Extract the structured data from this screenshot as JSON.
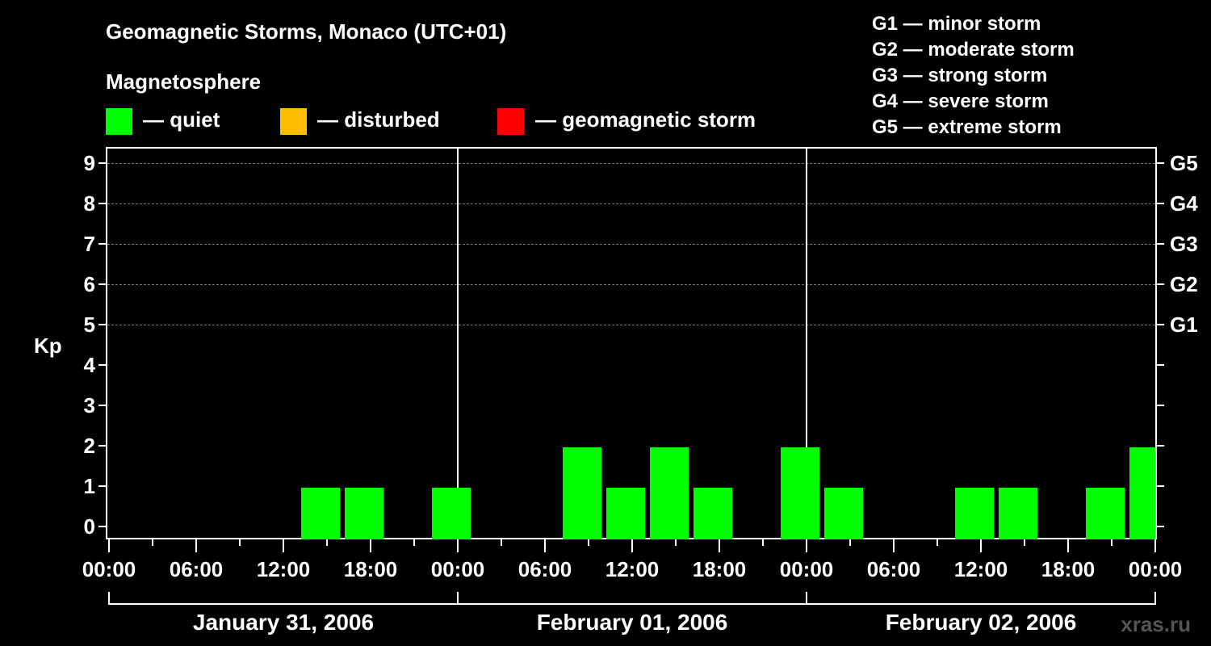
{
  "title": "Geomagnetic Storms, Monaco (UTC+01)",
  "subtitle": "Magnetosphere",
  "legend": [
    {
      "label": "— quiet",
      "color": "#00ff00"
    },
    {
      "label": "— disturbed",
      "color": "#ffbf00"
    },
    {
      "label": "— geomagnetic storm",
      "color": "#ff0000"
    }
  ],
  "g_scale": [
    "G1 — minor storm",
    "G2 — moderate storm",
    "G3 — strong storm",
    "G4 — severe storm",
    "G5 — extreme storm"
  ],
  "y_axis_label": "Kp",
  "y_ticks": [
    "0",
    "1",
    "2",
    "3",
    "4",
    "5",
    "6",
    "7",
    "8",
    "9"
  ],
  "g_ticks": [
    "G1",
    "G2",
    "G3",
    "G4",
    "G5"
  ],
  "x_ticks": [
    "00:00",
    "06:00",
    "12:00",
    "18:00",
    "00:00",
    "06:00",
    "12:00",
    "18:00",
    "00:00",
    "06:00",
    "12:00",
    "18:00",
    "00:00"
  ],
  "days": [
    "January 31, 2006",
    "February 01, 2006",
    "February 02, 2006"
  ],
  "watermark": "xras.ru",
  "chart_data": {
    "type": "bar",
    "title": "Geomagnetic Storms, Monaco (UTC+01)",
    "xlabel": "",
    "ylabel": "Kp",
    "ylim": [
      0,
      9
    ],
    "interval_hours": 3,
    "categories": [
      "Jan31 00:00",
      "Jan31 03:00",
      "Jan31 06:00",
      "Jan31 09:00",
      "Jan31 12:00",
      "Jan31 15:00",
      "Jan31 18:00",
      "Jan31 21:00",
      "Feb01 00:00",
      "Feb01 03:00",
      "Feb01 06:00",
      "Feb01 09:00",
      "Feb01 12:00",
      "Feb01 15:00",
      "Feb01 18:00",
      "Feb01 21:00",
      "Feb02 00:00",
      "Feb02 03:00",
      "Feb02 06:00",
      "Feb02 09:00",
      "Feb02 12:00",
      "Feb02 15:00",
      "Feb02 18:00",
      "Feb02 21:00"
    ],
    "values": [
      0,
      0,
      0,
      0,
      1,
      1,
      0,
      1,
      0,
      0,
      2,
      1,
      2,
      1,
      0,
      2,
      1,
      0,
      0,
      1,
      1,
      0,
      1,
      2
    ],
    "bar_color": "#00ff00",
    "right_axis": {
      "G1": 5,
      "G2": 6,
      "G3": 7,
      "G4": 8,
      "G5": 9
    },
    "grid": "dashed horizontal at Kp 5-9",
    "legend": [
      "quiet",
      "disturbed",
      "geomagnetic storm"
    ]
  }
}
